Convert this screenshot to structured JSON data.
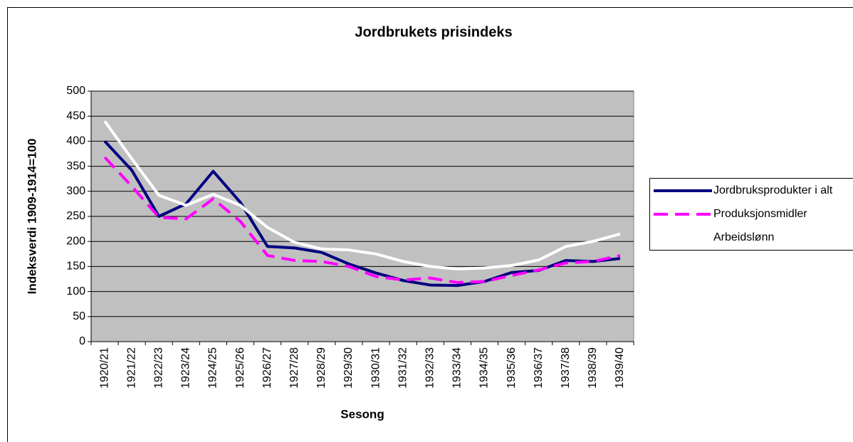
{
  "chart_data": {
    "type": "line",
    "title": "Jordbrukets prisindeks",
    "x_label": "Sesong",
    "y_label": "Indeksverdi 1909-1914=100",
    "categories": [
      "1920/21",
      "1921/22",
      "1922/23",
      "1923/24",
      "1924/25",
      "1925/26",
      "1926/27",
      "1927/28",
      "1928/29",
      "1929/30",
      "1930/31",
      "1931/32",
      "1932/33",
      "1933/34",
      "1934/35",
      "1935/36",
      "1936/37",
      "1937/38",
      "1938/39",
      "1939/40"
    ],
    "series": [
      {
        "name": "Jordbruksprodukter i alt",
        "color": "#000080",
        "dash": "solid",
        "values": [
          400,
          342,
          250,
          275,
          340,
          278,
          190,
          187,
          178,
          155,
          137,
          122,
          113,
          112,
          120,
          138,
          142,
          162,
          160,
          166
        ]
      },
      {
        "name": "Produksjonsmidler",
        "color": "#ff00ff",
        "dash": "dashed",
        "values": [
          368,
          310,
          248,
          245,
          285,
          240,
          172,
          162,
          160,
          150,
          130,
          123,
          127,
          118,
          120,
          132,
          143,
          157,
          160,
          172
        ]
      },
      {
        "name": "Arbeidslønn",
        "color": "#ffffff",
        "dash": "solid",
        "values": [
          440,
          365,
          292,
          272,
          294,
          272,
          228,
          198,
          185,
          183,
          175,
          160,
          150,
          145,
          147,
          152,
          163,
          190,
          200,
          215
        ]
      }
    ],
    "ylim": [
      0,
      500
    ],
    "yticks": [
      0,
      50,
      100,
      150,
      200,
      250,
      300,
      350,
      400,
      450,
      500
    ],
    "grid": true,
    "legend": "right"
  }
}
